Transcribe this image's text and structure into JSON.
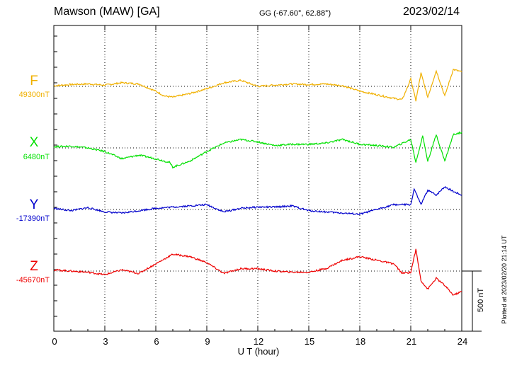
{
  "header": {
    "station": "Mawson (MAW)  [GA]",
    "coords": "GG (-67.60°,  62.88°)",
    "date": "2023/02/14"
  },
  "footer": {
    "xlabel": "U T (hour)",
    "scale_label": "500 nT",
    "plotted": "Plotted at 2023/02/20 21:14 UT"
  },
  "chart_data": {
    "type": "line",
    "title": "Mawson (MAW)  [GA]",
    "xlabel": "U T (hour)",
    "xlim": [
      0,
      24
    ],
    "xticks": [
      "0",
      "3",
      "6",
      "9",
      "12",
      "15",
      "18",
      "21",
      "24"
    ],
    "grid": true,
    "scale_bar_nT": 500,
    "colors": {
      "F": "#f0b000",
      "X": "#00e000",
      "Y": "#0000cc",
      "Z": "#ee0000"
    },
    "series": [
      {
        "name": "F",
        "baseline_label": "49300nT",
        "color": "#f0b000",
        "x": [
          0,
          1,
          2,
          3,
          4,
          5,
          6,
          6.5,
          7,
          8,
          9,
          10,
          11,
          12,
          13,
          14,
          15,
          16,
          17,
          18,
          19,
          20,
          20.5,
          21,
          21.3,
          21.6,
          22,
          22.5,
          23,
          23.5,
          24
        ],
        "y": [
          5,
          15,
          20,
          10,
          30,
          20,
          -40,
          -80,
          -90,
          -60,
          -20,
          30,
          50,
          0,
          10,
          20,
          15,
          20,
          5,
          -40,
          -70,
          -100,
          -110,
          60,
          -120,
          110,
          -90,
          130,
          -80,
          140,
          120
        ]
      },
      {
        "name": "X",
        "baseline_label": "6480nT",
        "color": "#00e000",
        "x": [
          0,
          1,
          2,
          3,
          4,
          5,
          6,
          6.8,
          7,
          8,
          9,
          10,
          11,
          12,
          13,
          14,
          15,
          16,
          17,
          18,
          19,
          20,
          21,
          21.3,
          21.7,
          22,
          22.5,
          23,
          23.5,
          24
        ],
        "y": [
          10,
          15,
          0,
          -30,
          -90,
          -60,
          -90,
          -120,
          -160,
          -110,
          -30,
          40,
          70,
          50,
          20,
          30,
          30,
          40,
          70,
          30,
          20,
          5,
          70,
          -120,
          100,
          -110,
          110,
          -110,
          110,
          130
        ]
      },
      {
        "name": "Y",
        "baseline_label": "-17390nT",
        "color": "#0000cc",
        "x": [
          0,
          1,
          2,
          3,
          4,
          5,
          6,
          7,
          8,
          9,
          10,
          11,
          12,
          13,
          14,
          15,
          16,
          17,
          18,
          19,
          20,
          21,
          21.2,
          21.6,
          22,
          22.5,
          23,
          23.5,
          24
        ],
        "y": [
          10,
          -10,
          15,
          -20,
          -30,
          -10,
          10,
          20,
          30,
          40,
          -20,
          10,
          20,
          20,
          30,
          -10,
          -20,
          -30,
          -40,
          0,
          40,
          40,
          170,
          40,
          160,
          120,
          190,
          150,
          120
        ]
      },
      {
        "name": "Z",
        "baseline_label": "-45670nT",
        "color": "#ee0000",
        "x": [
          0,
          1,
          2,
          3,
          4,
          5,
          6,
          7,
          8,
          9,
          10,
          11,
          12,
          13,
          14,
          15,
          16,
          17,
          18,
          19,
          20,
          20.5,
          21,
          21.3,
          21.6,
          22,
          22.5,
          23,
          23.5,
          24
        ],
        "y": [
          10,
          0,
          -10,
          -30,
          10,
          -20,
          60,
          140,
          120,
          70,
          -20,
          20,
          20,
          0,
          -10,
          -10,
          20,
          90,
          120,
          90,
          60,
          -20,
          -10,
          180,
          -80,
          -150,
          -60,
          -120,
          -200,
          -170
        ]
      }
    ]
  }
}
